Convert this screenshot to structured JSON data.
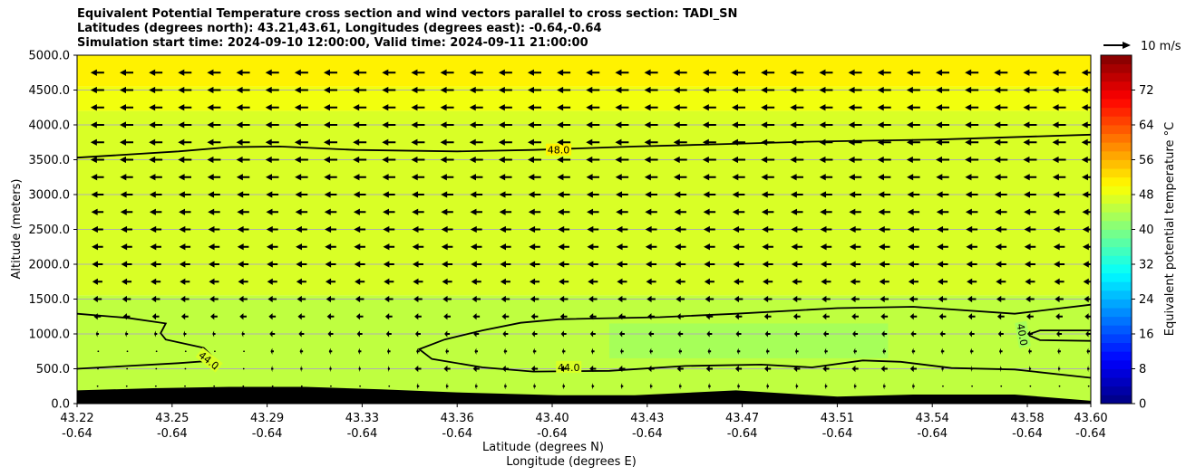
{
  "titles": {
    "line1": "Equivalent Potential Temperature cross section and wind vectors parallel to cross section: TADI_SN",
    "line2": "Latitudes (degrees north): 43.21,43.61, Longitudes (degrees east): -0.64,-0.64",
    "line3": "Simulation start time: 2024-09-10 12:00:00, Valid time: 2024-09-11 21:00:00"
  },
  "chart_data": {
    "type": "heatmap",
    "ylabel": "Altitude (meters)",
    "xlabel_line1": "Latitude (degrees N)",
    "xlabel_line2": "Longitude (degrees E)",
    "ylim": [
      0,
      5000
    ],
    "yticks": [
      "0.0",
      "500.0",
      "1000.0",
      "1500.0",
      "2000.0",
      "2500.0",
      "3000.0",
      "3500.0",
      "4000.0",
      "4500.0",
      "5000.0"
    ],
    "ytick_values": [
      0,
      500,
      1000,
      1500,
      2000,
      2500,
      3000,
      3500,
      4000,
      4500,
      5000
    ],
    "xlim": [
      43.21,
      43.61
    ],
    "xticks_lat": [
      "43.22",
      "43.25",
      "43.29",
      "43.33",
      "43.36",
      "43.40",
      "43.43",
      "43.47",
      "43.51",
      "43.54",
      "43.58",
      "43.60"
    ],
    "xticks_lon": [
      "-0.64",
      "-0.64",
      "-0.64",
      "-0.64",
      "-0.64",
      "-0.64",
      "-0.64",
      "-0.64",
      "-0.64",
      "-0.64",
      "-0.64",
      "-0.64"
    ],
    "grid": "horizontal",
    "colorbar": {
      "label": "Equivalent potential temperature $^\\circ$C",
      "label_display": "Equivalent potential temperature °C",
      "range": [
        0,
        80
      ],
      "step": 2,
      "ticks": [
        "0",
        "8",
        "16",
        "24",
        "32",
        "40",
        "48",
        "56",
        "64",
        "72"
      ],
      "tick_values": [
        0,
        8,
        16,
        24,
        32,
        40,
        48,
        56,
        64,
        72
      ],
      "colormap": "jet"
    },
    "field_layers": [
      {
        "altitude": [
          4550,
          5000
        ],
        "value": 50
      },
      {
        "altitude": [
          4200,
          4550
        ],
        "value": 49
      },
      {
        "altitude": [
          1550,
          4200
        ],
        "value": 47
      },
      {
        "altitude": [
          0,
          1550
        ],
        "value": 45
      },
      {
        "altitude": [
          650,
          1150
        ],
        "latitude": [
          43.42,
          43.53
        ],
        "value": 43
      }
    ],
    "contours": [
      {
        "label": "48.0",
        "value": 48.0,
        "points": [
          [
            43.21,
            3530
          ],
          [
            43.25,
            3620
          ],
          [
            43.27,
            3680
          ],
          [
            43.29,
            3690
          ],
          [
            43.32,
            3640
          ],
          [
            43.36,
            3620
          ],
          [
            43.39,
            3640
          ],
          [
            43.43,
            3690
          ],
          [
            43.46,
            3720
          ],
          [
            43.5,
            3760
          ],
          [
            43.55,
            3790
          ],
          [
            43.61,
            3860
          ]
        ],
        "label_at": [
          43.4,
          3640
        ]
      },
      {
        "label": "44.0",
        "value": 44.0,
        "points": [
          [
            43.21,
            1290
          ],
          [
            43.23,
            1230
          ],
          [
            43.245,
            1150
          ],
          [
            43.243,
            1010
          ],
          [
            43.245,
            920
          ],
          [
            43.26,
            800
          ],
          [
            43.265,
            620
          ],
          [
            43.25,
            580
          ],
          [
            43.23,
            540
          ],
          [
            43.21,
            500
          ]
        ],
        "label_at": [
          43.262,
          620
        ],
        "label_rotate": 38
      },
      {
        "label": "44.0",
        "value": 44.0,
        "points": [
          [
            43.61,
            1420
          ],
          [
            43.58,
            1290
          ],
          [
            43.54,
            1390
          ],
          [
            43.51,
            1370
          ],
          [
            43.47,
            1290
          ],
          [
            43.44,
            1240
          ],
          [
            43.4,
            1210
          ],
          [
            43.385,
            1160
          ],
          [
            43.37,
            1050
          ],
          [
            43.355,
            920
          ],
          [
            43.345,
            780
          ],
          [
            43.35,
            640
          ],
          [
            43.37,
            520
          ],
          [
            43.39,
            460
          ],
          [
            43.42,
            470
          ],
          [
            43.45,
            540
          ],
          [
            43.48,
            560
          ],
          [
            43.5,
            520
          ],
          [
            43.52,
            620
          ],
          [
            43.535,
            600
          ],
          [
            43.555,
            510
          ],
          [
            43.58,
            490
          ],
          [
            43.61,
            370
          ]
        ],
        "label_at": [
          43.404,
          520
        ]
      },
      {
        "label": "40.0",
        "value": 40.0,
        "points": [
          [
            43.61,
            900
          ],
          [
            43.59,
            910
          ],
          [
            43.585,
            990
          ],
          [
            43.59,
            1050
          ],
          [
            43.61,
            1050
          ]
        ],
        "label_at": [
          43.583,
          990
        ],
        "label_rotate": 80
      }
    ],
    "terrain": {
      "fill": "#000000",
      "points": [
        [
          43.21,
          190
        ],
        [
          43.24,
          220
        ],
        [
          43.27,
          240
        ],
        [
          43.3,
          240
        ],
        [
          43.33,
          205
        ],
        [
          43.36,
          160
        ],
        [
          43.4,
          120
        ],
        [
          43.43,
          120
        ],
        [
          43.47,
          190
        ],
        [
          43.51,
          100
        ],
        [
          43.54,
          130
        ],
        [
          43.58,
          130
        ],
        [
          43.61,
          40
        ]
      ]
    },
    "wind_vectors": {
      "reference": {
        "label": "10 m/s",
        "speed": 10,
        "unit": "m/s"
      },
      "direction": "southward (towards lower latitude)",
      "rows": [
        {
          "altitude": 4750,
          "u": -5.0
        },
        {
          "altitude": 4500,
          "u": -5.0
        },
        {
          "altitude": 4250,
          "u": -5.0
        },
        {
          "altitude": 4000,
          "u": -5.0
        },
        {
          "altitude": 3750,
          "u": -5.0
        },
        {
          "altitude": 3500,
          "u": -5.0
        },
        {
          "altitude": 3250,
          "u": -4.8
        },
        {
          "altitude": 3000,
          "u": -4.6
        },
        {
          "altitude": 2750,
          "u": -4.5
        },
        {
          "altitude": 2500,
          "u": -4.3
        },
        {
          "altitude": 2250,
          "u": -4.2
        },
        {
          "altitude": 2000,
          "u": -4.0
        },
        {
          "altitude": 1750,
          "u": -3.7
        },
        {
          "altitude": 1500,
          "u": -3.2
        },
        {
          "altitude": 1250,
          "u": -2.6
        },
        {
          "altitude": 1000,
          "u": -2.0
        },
        {
          "altitude": 750,
          "u": -1.2
        },
        {
          "altitude": 500,
          "u": -0.8
        },
        {
          "altitude": 250,
          "u": -0.3
        }
      ],
      "lat_spacing": 0.0115
    }
  }
}
